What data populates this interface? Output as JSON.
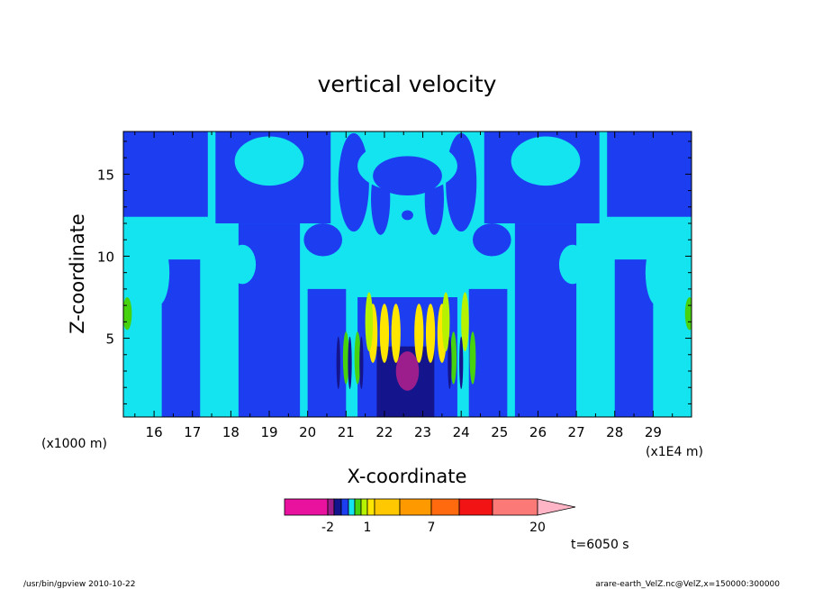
{
  "chart_data": {
    "type": "heatmap",
    "title": "vertical velocity",
    "xlabel": "X-coordinate",
    "ylabel": "Z-coordinate",
    "x_unit": "(x1E4 m)",
    "y_unit": "(x1000 m)",
    "xlim": [
      15.2,
      30.0
    ],
    "ylim": [
      0.2,
      17.6
    ],
    "x_ticks": [
      16,
      17,
      18,
      19,
      20,
      21,
      22,
      23,
      24,
      25,
      26,
      27,
      28,
      29
    ],
    "y_ticks": [
      5,
      10,
      15
    ],
    "grid": false,
    "colorbar": {
      "position": "bottom",
      "levels": [
        -20,
        -2,
        -1.5,
        -1,
        -0.5,
        0,
        0.5,
        1,
        2,
        4,
        7,
        10,
        15,
        20,
        30
      ],
      "colors": [
        "#e8129e",
        "#9c1e8c",
        "#14158c",
        "#1c3ef0",
        "#14e4ef",
        "#46d20f",
        "#b7f200",
        "#ffe600",
        "#ffc800",
        "#ff9900",
        "#ff6a0f",
        "#f21414",
        "#fb7a77",
        "#ffb5c5"
      ],
      "tick_labels": [
        "-2",
        "1",
        "7",
        "20"
      ],
      "tick_values": [
        -2,
        1,
        7,
        20
      ]
    },
    "time_label": "t=6050 s"
  },
  "footer": {
    "left": "/usr/bin/gpview   2010-10-22",
    "right": "arare-earth_VelZ.nc@VelZ,x=150000:300000"
  }
}
